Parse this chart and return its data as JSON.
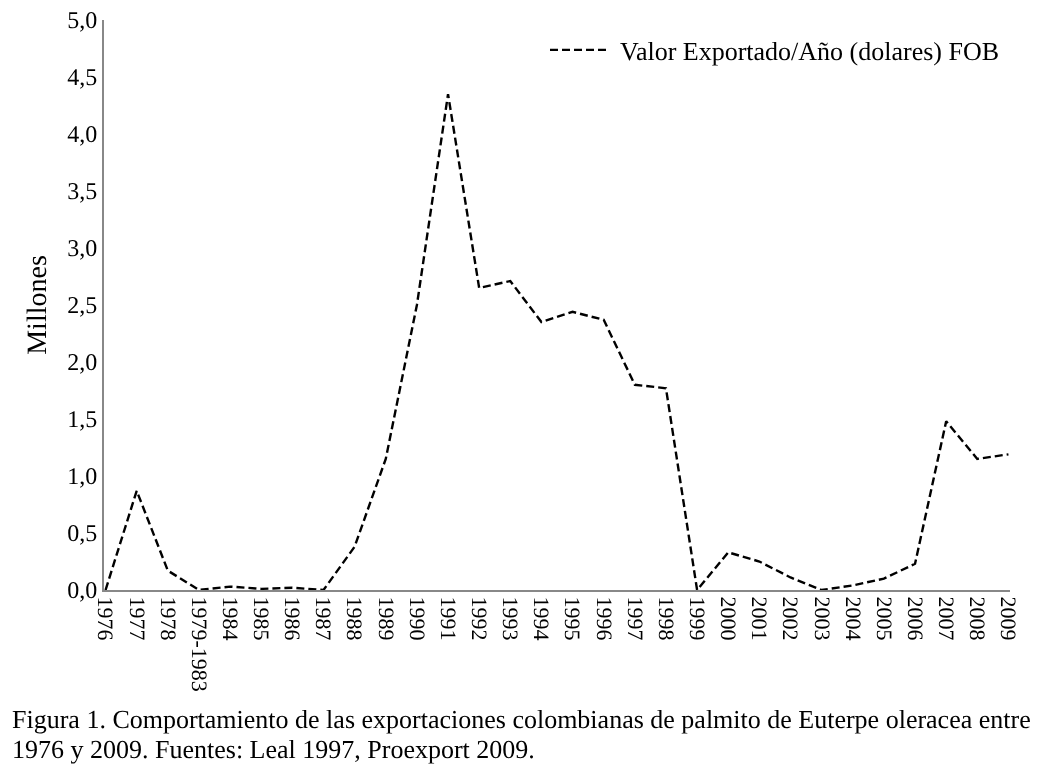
{
  "chart_data": {
    "type": "line",
    "ylabel": "Millones",
    "categories": [
      "1976",
      "1977",
      "1978",
      "1979-1983",
      "1984",
      "1985",
      "1986",
      "1987",
      "1988",
      "1989",
      "1990",
      "1991",
      "1992",
      "1993",
      "1994",
      "1995",
      "1996",
      "1997",
      "1998",
      "1999",
      "2000",
      "2001",
      "2002",
      "2003",
      "2004",
      "2005",
      "2006",
      "2007",
      "2008",
      "2009"
    ],
    "series": [
      {
        "name": "Valor Exportado/Año (dolares) FOB",
        "color": "#000000",
        "values": [
          0,
          0.87,
          0.17,
          0,
          0.03,
          0.01,
          0.02,
          0,
          0.38,
          1.15,
          2.5,
          4.35,
          2.65,
          2.71,
          2.35,
          2.44,
          2.37,
          1.8,
          1.77,
          0,
          0.33,
          0.25,
          0.11,
          0,
          0.04,
          0.1,
          0.23,
          1.48,
          1.15,
          1.19
        ]
      }
    ],
    "ylim": [
      0,
      5
    ],
    "yticks": [
      {
        "value": 0,
        "label": "0,0"
      },
      {
        "value": 0.5,
        "label": "0,5"
      },
      {
        "value": 1,
        "label": "1,0"
      },
      {
        "value": 1.5,
        "label": "1,5"
      },
      {
        "value": 2,
        "label": "2,0"
      },
      {
        "value": 2.5,
        "label": "2,5"
      },
      {
        "value": 3,
        "label": "3,0"
      },
      {
        "value": 3.5,
        "label": "3,5"
      },
      {
        "value": 4,
        "label": "4,0"
      },
      {
        "value": 4.5,
        "label": "4,5"
      },
      {
        "value": 5,
        "label": "5,0"
      }
    ],
    "grid": false,
    "legend": "top right",
    "marker": "none",
    "line_style": "dashed",
    "annotations": [
      "Figura 1. Comportamiento de las exportaciones colombianas de palmito de Euterpe oleracea entre 1976 y 2009. Fuentes: Leal 1997, Proexport 2009."
    ]
  }
}
